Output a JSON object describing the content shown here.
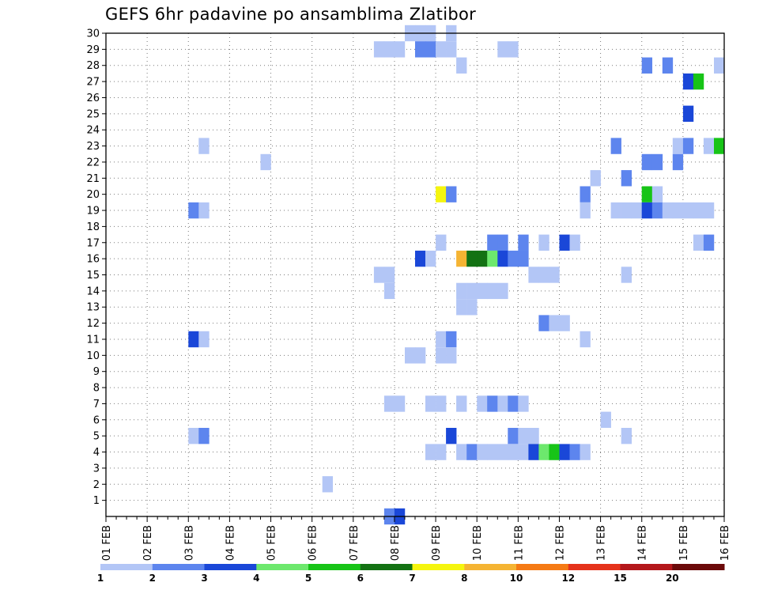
{
  "chart_data": {
    "type": "heatmap",
    "title": "GEFS 6hr padavine po ansamblima Zlatibor",
    "xlabel": "",
    "ylabel": "",
    "x_ticks": [
      "01 FEB",
      "02 FEB",
      "03 FEB",
      "04 FEB",
      "05 FEB",
      "06 FEB",
      "07 FEB",
      "08 FEB",
      "09 FEB",
      "10 FEB",
      "11 FEB",
      "12 FEB",
      "13 FEB",
      "14 FEB",
      "15 FEB",
      "16 FEB"
    ],
    "y_ticks": [
      "1",
      "2",
      "3",
      "4",
      "5",
      "6",
      "7",
      "8",
      "9",
      "10",
      "11",
      "12",
      "13",
      "14",
      "15",
      "16",
      "17",
      "18",
      "19",
      "20",
      "21",
      "22",
      "23",
      "24",
      "25",
      "26",
      "27",
      "28",
      "29",
      "30"
    ],
    "xlim_days": [
      1,
      16
    ],
    "ylim": [
      0,
      30
    ],
    "step_hours": 6,
    "grid": "dotted",
    "colorbar": {
      "placement": "bottom",
      "labels": [
        "1",
        "2",
        "3",
        "4",
        "5",
        "6",
        "7",
        "8",
        "10",
        "12",
        "15",
        "20"
      ],
      "colors": [
        "#b3c6f6",
        "#5d85ee",
        "#1a47d8",
        "#6de86d",
        "#17c417",
        "#137213",
        "#f5f50e",
        "#f5b433",
        "#f57a14",
        "#e5321b",
        "#b4171b",
        "#6b0a0a"
      ]
    },
    "cells_format": "[member, start_day_fractional, class_index (1 = 1-2 ... 12 = >20)]",
    "cells": [
      [
        30,
        8.25,
        1
      ],
      [
        30,
        8.5,
        1
      ],
      [
        30,
        8.75,
        1
      ],
      [
        30,
        9.25,
        1
      ],
      [
        29,
        7.5,
        1
      ],
      [
        29,
        7.75,
        1
      ],
      [
        29,
        8.0,
        1
      ],
      [
        29,
        8.5,
        2
      ],
      [
        29,
        8.75,
        2
      ],
      [
        29,
        9.0,
        1
      ],
      [
        29,
        9.25,
        1
      ],
      [
        29,
        10.5,
        1
      ],
      [
        29,
        10.75,
        1
      ],
      [
        28,
        9.5,
        1
      ],
      [
        28,
        14.0,
        2
      ],
      [
        28,
        14.5,
        2
      ],
      [
        28,
        15.75,
        1
      ],
      [
        27,
        15.0,
        3
      ],
      [
        27,
        15.25,
        5
      ],
      [
        25,
        15.0,
        3
      ],
      [
        23,
        3.25,
        1
      ],
      [
        23,
        13.25,
        2
      ],
      [
        23,
        14.75,
        1
      ],
      [
        23,
        15.0,
        2
      ],
      [
        23,
        15.5,
        1
      ],
      [
        23,
        15.75,
        5
      ],
      [
        22,
        4.75,
        1
      ],
      [
        22,
        14.0,
        2
      ],
      [
        22,
        14.25,
        2
      ],
      [
        22,
        14.75,
        2
      ],
      [
        21,
        12.75,
        1
      ],
      [
        21,
        13.5,
        2
      ],
      [
        20,
        9.0,
        7
      ],
      [
        20,
        9.25,
        2
      ],
      [
        20,
        12.5,
        2
      ],
      [
        20,
        14.0,
        5
      ],
      [
        20,
        14.25,
        1
      ],
      [
        19,
        3.0,
        2
      ],
      [
        19,
        3.25,
        1
      ],
      [
        19,
        12.5,
        1
      ],
      [
        19,
        13.25,
        1
      ],
      [
        19,
        13.5,
        1
      ],
      [
        19,
        13.75,
        1
      ],
      [
        19,
        14.0,
        3
      ],
      [
        19,
        14.25,
        2
      ],
      [
        19,
        14.5,
        1
      ],
      [
        19,
        14.75,
        1
      ],
      [
        19,
        15.0,
        1
      ],
      [
        19,
        15.25,
        1
      ],
      [
        19,
        15.5,
        1
      ],
      [
        17,
        9.0,
        1
      ],
      [
        17,
        10.25,
        2
      ],
      [
        17,
        10.5,
        2
      ],
      [
        17,
        11.0,
        2
      ],
      [
        17,
        11.5,
        1
      ],
      [
        17,
        12.0,
        3
      ],
      [
        17,
        12.25,
        1
      ],
      [
        17,
        15.25,
        1
      ],
      [
        17,
        15.5,
        2
      ],
      [
        16,
        8.5,
        3
      ],
      [
        16,
        8.75,
        1
      ],
      [
        16,
        9.5,
        8
      ],
      [
        16,
        9.75,
        6
      ],
      [
        16,
        10.0,
        6
      ],
      [
        16,
        10.25,
        4
      ],
      [
        16,
        10.5,
        3
      ],
      [
        16,
        10.75,
        2
      ],
      [
        16,
        11.0,
        2
      ],
      [
        15,
        7.5,
        1
      ],
      [
        15,
        7.75,
        1
      ],
      [
        15,
        11.25,
        1
      ],
      [
        15,
        11.5,
        1
      ],
      [
        15,
        11.75,
        1
      ],
      [
        15,
        13.5,
        1
      ],
      [
        14,
        7.75,
        1
      ],
      [
        14,
        9.5,
        1
      ],
      [
        14,
        9.75,
        1
      ],
      [
        14,
        10.0,
        1
      ],
      [
        14,
        10.25,
        1
      ],
      [
        14,
        10.5,
        1
      ],
      [
        13,
        9.5,
        1
      ],
      [
        13,
        9.75,
        1
      ],
      [
        12,
        11.5,
        2
      ],
      [
        12,
        11.75,
        1
      ],
      [
        12,
        12.0,
        1
      ],
      [
        11,
        3.0,
        3
      ],
      [
        11,
        3.25,
        1
      ],
      [
        11,
        9.0,
        1
      ],
      [
        11,
        9.25,
        2
      ],
      [
        11,
        12.5,
        1
      ],
      [
        10,
        8.25,
        1
      ],
      [
        10,
        8.5,
        1
      ],
      [
        10,
        9.0,
        1
      ],
      [
        10,
        9.25,
        1
      ],
      [
        7,
        7.75,
        1
      ],
      [
        7,
        8.0,
        1
      ],
      [
        7,
        8.75,
        1
      ],
      [
        7,
        9.0,
        1
      ],
      [
        7,
        9.5,
        1
      ],
      [
        7,
        10.0,
        1
      ],
      [
        7,
        10.25,
        2
      ],
      [
        7,
        10.5,
        1
      ],
      [
        7,
        10.75,
        2
      ],
      [
        7,
        11.0,
        1
      ],
      [
        6,
        13.0,
        1
      ],
      [
        5,
        3.0,
        1
      ],
      [
        5,
        3.25,
        2
      ],
      [
        5,
        9.25,
        3
      ],
      [
        5,
        10.75,
        2
      ],
      [
        5,
        11.0,
        1
      ],
      [
        5,
        11.25,
        1
      ],
      [
        5,
        13.5,
        1
      ],
      [
        4,
        8.75,
        1
      ],
      [
        4,
        9.0,
        1
      ],
      [
        4,
        9.5,
        1
      ],
      [
        4,
        9.75,
        2
      ],
      [
        4,
        10.0,
        1
      ],
      [
        4,
        10.25,
        1
      ],
      [
        4,
        10.5,
        1
      ],
      [
        4,
        10.75,
        1
      ],
      [
        4,
        11.0,
        1
      ],
      [
        4,
        11.25,
        3
      ],
      [
        4,
        11.5,
        4
      ],
      [
        4,
        11.75,
        5
      ],
      [
        4,
        12.0,
        3
      ],
      [
        4,
        12.25,
        2
      ],
      [
        4,
        12.5,
        1
      ],
      [
        2,
        6.25,
        1
      ],
      [
        0,
        7.75,
        2
      ],
      [
        0,
        8.0,
        3
      ]
    ]
  }
}
